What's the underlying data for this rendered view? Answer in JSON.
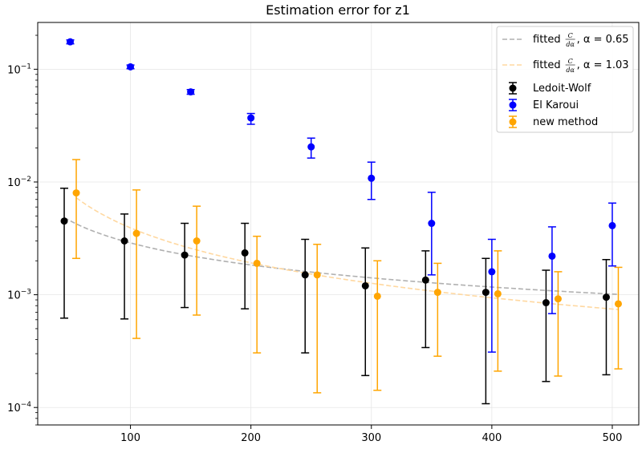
{
  "chart_data": {
    "type": "scatter",
    "title": "Estimation error for z1",
    "xlabel": "",
    "ylabel": "",
    "yscale": "log",
    "xlim": [
      23,
      522
    ],
    "ylim": [
      7e-05,
      0.26
    ],
    "grid": true,
    "legend_position": "top-right",
    "x_ticks": [
      100,
      200,
      300,
      400,
      500
    ],
    "x_tick_labels": [
      "100",
      "200",
      "300",
      "400",
      "500"
    ],
    "y_tick_labels": [
      {
        "base": "10",
        "exp": "−1",
        "value": 0.1
      },
      {
        "base": "10",
        "exp": "−2",
        "value": 0.01
      },
      {
        "base": "10",
        "exp": "−3",
        "value": 0.001
      },
      {
        "base": "10",
        "exp": "−4",
        "value": 0.0001
      }
    ],
    "series": [
      {
        "name": "Ledoit-Wolf",
        "kind": "errorbar",
        "color": "#000000",
        "x": [
          45,
          95,
          145,
          195,
          245,
          295,
          345,
          395,
          445,
          495
        ],
        "y": [
          0.0045,
          0.003,
          0.00225,
          0.00235,
          0.0015,
          0.0012,
          0.00135,
          0.00105,
          0.00085,
          0.00095
        ],
        "ylow": [
          0.00062,
          0.00061,
          0.00077,
          0.00075,
          0.000305,
          0.000192,
          0.00034,
          0.000108,
          0.00017,
          0.000195
        ],
        "yhigh": [
          0.0088,
          0.0052,
          0.0043,
          0.0043,
          0.0031,
          0.0026,
          0.00245,
          0.0021,
          0.00165,
          0.00205
        ]
      },
      {
        "name": "El Karoui",
        "kind": "errorbar",
        "color": "#0000ff",
        "x": [
          50,
          100,
          150,
          200,
          250,
          300,
          350,
          400,
          450,
          500
        ],
        "y": [
          0.175,
          0.105,
          0.063,
          0.037,
          0.0205,
          0.0108,
          0.0043,
          0.0016,
          0.0022,
          0.0041
        ],
        "ylow": [
          0.168,
          0.101,
          0.06,
          0.0325,
          0.0163,
          0.007,
          0.0015,
          0.00031,
          0.00068,
          0.0018
        ],
        "yhigh": [
          0.182,
          0.109,
          0.066,
          0.0405,
          0.0245,
          0.015,
          0.0081,
          0.0031,
          0.004,
          0.0065
        ]
      },
      {
        "name": "new method",
        "kind": "errorbar",
        "color": "#ffa500",
        "x": [
          55,
          105,
          155,
          205,
          255,
          305,
          355,
          405,
          455,
          505
        ],
        "y": [
          0.008,
          0.0035,
          0.003,
          0.0019,
          0.0015,
          0.00097,
          0.00105,
          0.00102,
          0.00092,
          0.00083
        ],
        "ylow": [
          0.0021,
          0.00041,
          0.00066,
          0.000305,
          0.000135,
          0.000142,
          0.000285,
          0.00021,
          0.00019,
          0.00022
        ],
        "yhigh": [
          0.0158,
          0.0085,
          0.0061,
          0.0033,
          0.0028,
          0.002,
          0.0019,
          0.00245,
          0.0016,
          0.00175
        ]
      },
      {
        "name": "fitted",
        "alpha_label": "α = 0.65",
        "kind": "fit",
        "color": "#b0b0b0",
        "alpha": 0.65,
        "C": 0.0575,
        "x_range": [
          45,
          505
        ]
      },
      {
        "name": "fitted",
        "alpha_label": "α = 1.03",
        "kind": "fit",
        "color": "#ffd8a0",
        "alpha": 1.03,
        "C": 0.45,
        "x_range": [
          55,
          505
        ]
      }
    ],
    "legend": [
      {
        "label": "fitted",
        "formula_num": "C",
        "formula_den": "dα",
        "alpha_text": ", α = 0.65",
        "style": "dashed",
        "color": "#b0b0b0"
      },
      {
        "label": "fitted",
        "formula_num": "C",
        "formula_den": "dα",
        "alpha_text": ", α = 1.03",
        "style": "dashed",
        "color": "#ffd8a0"
      },
      {
        "label": "Ledoit-Wolf",
        "style": "errorbar",
        "color": "#000000"
      },
      {
        "label": "El Karoui",
        "style": "errorbar",
        "color": "#0000ff"
      },
      {
        "label": "new method",
        "style": "errorbar",
        "color": "#ffa500"
      }
    ]
  }
}
